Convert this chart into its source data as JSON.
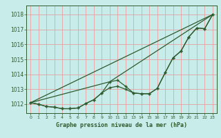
{
  "title": "Graphe pression niveau de la mer (hPa)",
  "bg_color": "#c8ecea",
  "plot_bg_color": "#c8ecea",
  "grid_color": "#e8a0a0",
  "line_color": "#2d5a2d",
  "xlim": [
    -0.5,
    23.5
  ],
  "ylim": [
    1011.4,
    1018.6
  ],
  "yticks": [
    1012,
    1013,
    1014,
    1015,
    1016,
    1017,
    1018
  ],
  "xticks": [
    0,
    1,
    2,
    3,
    4,
    5,
    6,
    7,
    8,
    9,
    10,
    11,
    12,
    13,
    14,
    15,
    16,
    17,
    18,
    19,
    20,
    21,
    22,
    23
  ],
  "data_x": [
    0,
    1,
    2,
    3,
    4,
    5,
    6,
    7,
    8,
    9,
    10,
    11,
    12,
    13,
    14,
    15,
    16,
    17,
    18,
    19,
    20,
    21,
    22,
    23
  ],
  "data_y1": [
    1012.1,
    1012.0,
    1011.85,
    1011.8,
    1011.7,
    1011.7,
    1011.75,
    1012.05,
    1012.3,
    1012.75,
    1013.5,
    1013.6,
    1013.2,
    1012.75,
    1012.7,
    1012.7,
    1013.05,
    1014.1,
    1015.1,
    1015.55,
    1016.5,
    1017.1,
    1017.05,
    1018.0
  ],
  "data_y2": [
    1012.1,
    1012.0,
    1011.85,
    1011.8,
    1011.7,
    1011.7,
    1011.75,
    1012.05,
    1012.3,
    1012.75,
    1013.1,
    1013.2,
    1013.0,
    1012.75,
    1012.7,
    1012.7,
    1013.05,
    1014.1,
    1015.1,
    1015.55,
    1016.5,
    1017.1,
    1017.05,
    1018.0
  ],
  "trend_x": [
    0,
    23
  ],
  "trend_y": [
    1012.1,
    1018.0
  ],
  "trend2_x": [
    0,
    10,
    23
  ],
  "trend2_y": [
    1012.1,
    1013.5,
    1018.0
  ]
}
